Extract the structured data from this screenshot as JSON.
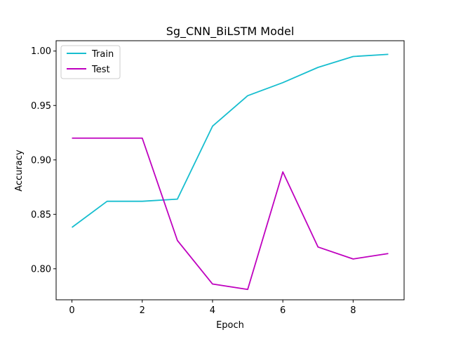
{
  "chart_data": {
    "type": "line",
    "title": "Sg_CNN_BiLSTM Model",
    "xlabel": "Epoch",
    "ylabel": "Accuracy",
    "x": [
      0,
      1,
      2,
      3,
      4,
      5,
      6,
      7,
      8,
      9
    ],
    "xlim": [
      -0.45,
      9.45
    ],
    "ylim": [
      0.7715,
      1.0095
    ],
    "xticks": [
      0,
      2,
      4,
      6,
      8
    ],
    "xtick_labels": [
      "0",
      "2",
      "4",
      "6",
      "8"
    ],
    "yticks": [
      0.8,
      0.85,
      0.9,
      0.95,
      1.0
    ],
    "ytick_labels": [
      "0.80",
      "0.85",
      "0.90",
      "0.95",
      "1.00"
    ],
    "grid": false,
    "legend_position": "upper-left",
    "series": [
      {
        "name": "Train",
        "color": "#17becf",
        "values": [
          0.838,
          0.862,
          0.862,
          0.864,
          0.931,
          0.959,
          0.971,
          0.985,
          0.995,
          0.997
        ]
      },
      {
        "name": "Test",
        "color": "#bf00bf",
        "values": [
          0.92,
          0.92,
          0.92,
          0.826,
          0.786,
          0.781,
          0.889,
          0.82,
          0.809,
          0.814
        ]
      }
    ]
  }
}
